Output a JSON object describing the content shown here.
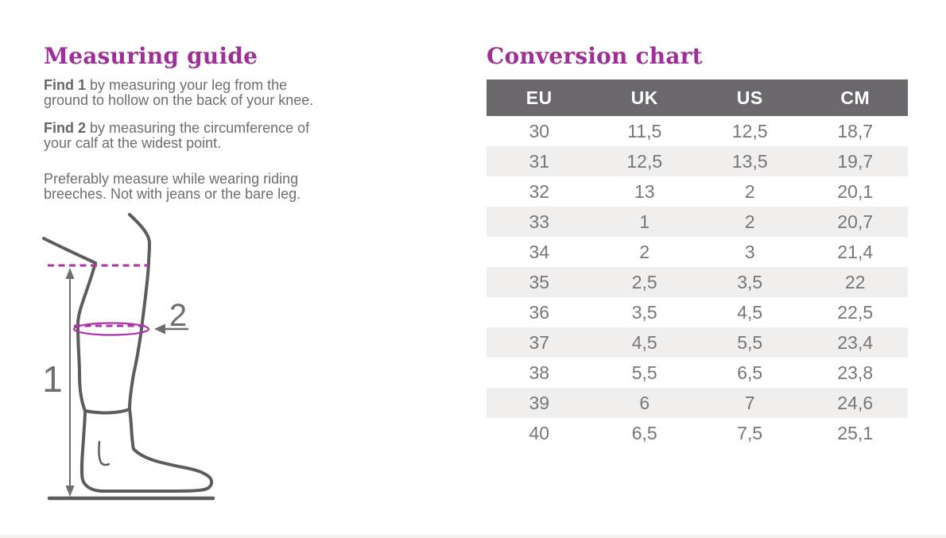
{
  "colors": {
    "accent": "#9d2f96",
    "magenta": "#ac33a5",
    "header_bg": "#6a676d",
    "header_text": "#ffffff",
    "row_alt": "#f0efed",
    "cell_text": "#76777a",
    "body_text": "#6d6e71",
    "leg_stroke": "#5b5c5f",
    "arrow_gray": "#6d6e71"
  },
  "guide": {
    "title": "Measuring guide",
    "step1_label": "Find 1",
    "step1_text": "by measuring your leg from the\nground to hollow on the back of your knee.",
    "step2_label": "Find 2",
    "step2_text": "by measuring the circumference of\nyour calf at the widest point.",
    "note": "Preferably measure while wearing riding\nbreeches. Not with jeans or the bare leg.",
    "diagram": {
      "height_label": "1",
      "calf_label": "2"
    }
  },
  "conversion": {
    "title": "Conversion chart",
    "columns": [
      "EU",
      "UK",
      "US",
      "CM"
    ],
    "rows": [
      [
        "30",
        "11,5",
        "12,5",
        "18,7"
      ],
      [
        "31",
        "12,5",
        "13,5",
        "19,7"
      ],
      [
        "32",
        "13",
        "2",
        "20,1"
      ],
      [
        "33",
        "1",
        "2",
        "20,7"
      ],
      [
        "34",
        "2",
        "3",
        "21,4"
      ],
      [
        "35",
        "2,5",
        "3,5",
        "22"
      ],
      [
        "36",
        "3,5",
        "4,5",
        "22,5"
      ],
      [
        "37",
        "4,5",
        "5,5",
        "23,4"
      ],
      [
        "38",
        "5,5",
        "6,5",
        "23,8"
      ],
      [
        "39",
        "6",
        "7",
        "24,6"
      ],
      [
        "40",
        "6,5",
        "7,5",
        "25,1"
      ]
    ]
  }
}
